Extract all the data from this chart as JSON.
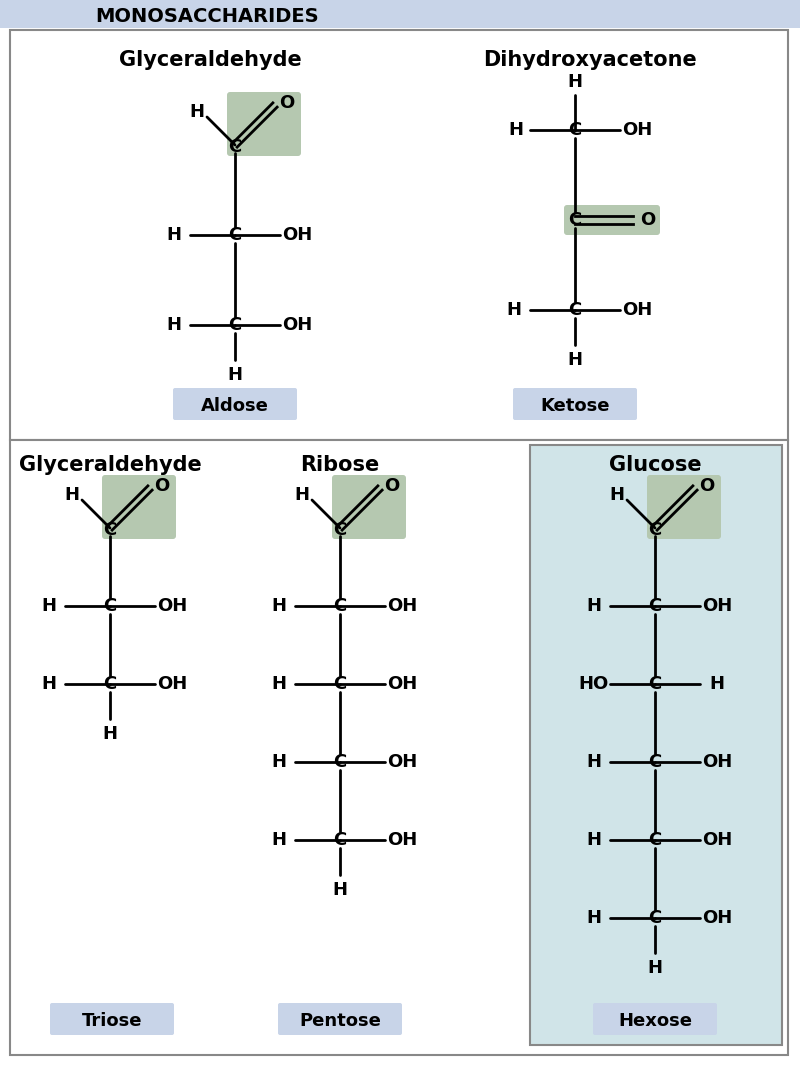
{
  "title": "MONOSACCHARIDES",
  "title_bg": "#c8d4e8",
  "panel1_title1": "Glyceraldehyde",
  "panel1_title2": "Dihydroxyacetone",
  "panel2_title1": "Glyceraldehyde",
  "panel2_title2": "Ribose",
  "panel2_title3": "Glucose",
  "label1": "Aldose",
  "label2": "Ketose",
  "label3": "Triose",
  "label4": "Pentose",
  "label5": "Hexose",
  "label_bg": "#c8d4e8",
  "highlight_bg": "#b5c8b0",
  "glucose_bg": "#d0e4e8",
  "border_color": "#888888",
  "line_color": "#000000",
  "font_color": "#000000"
}
